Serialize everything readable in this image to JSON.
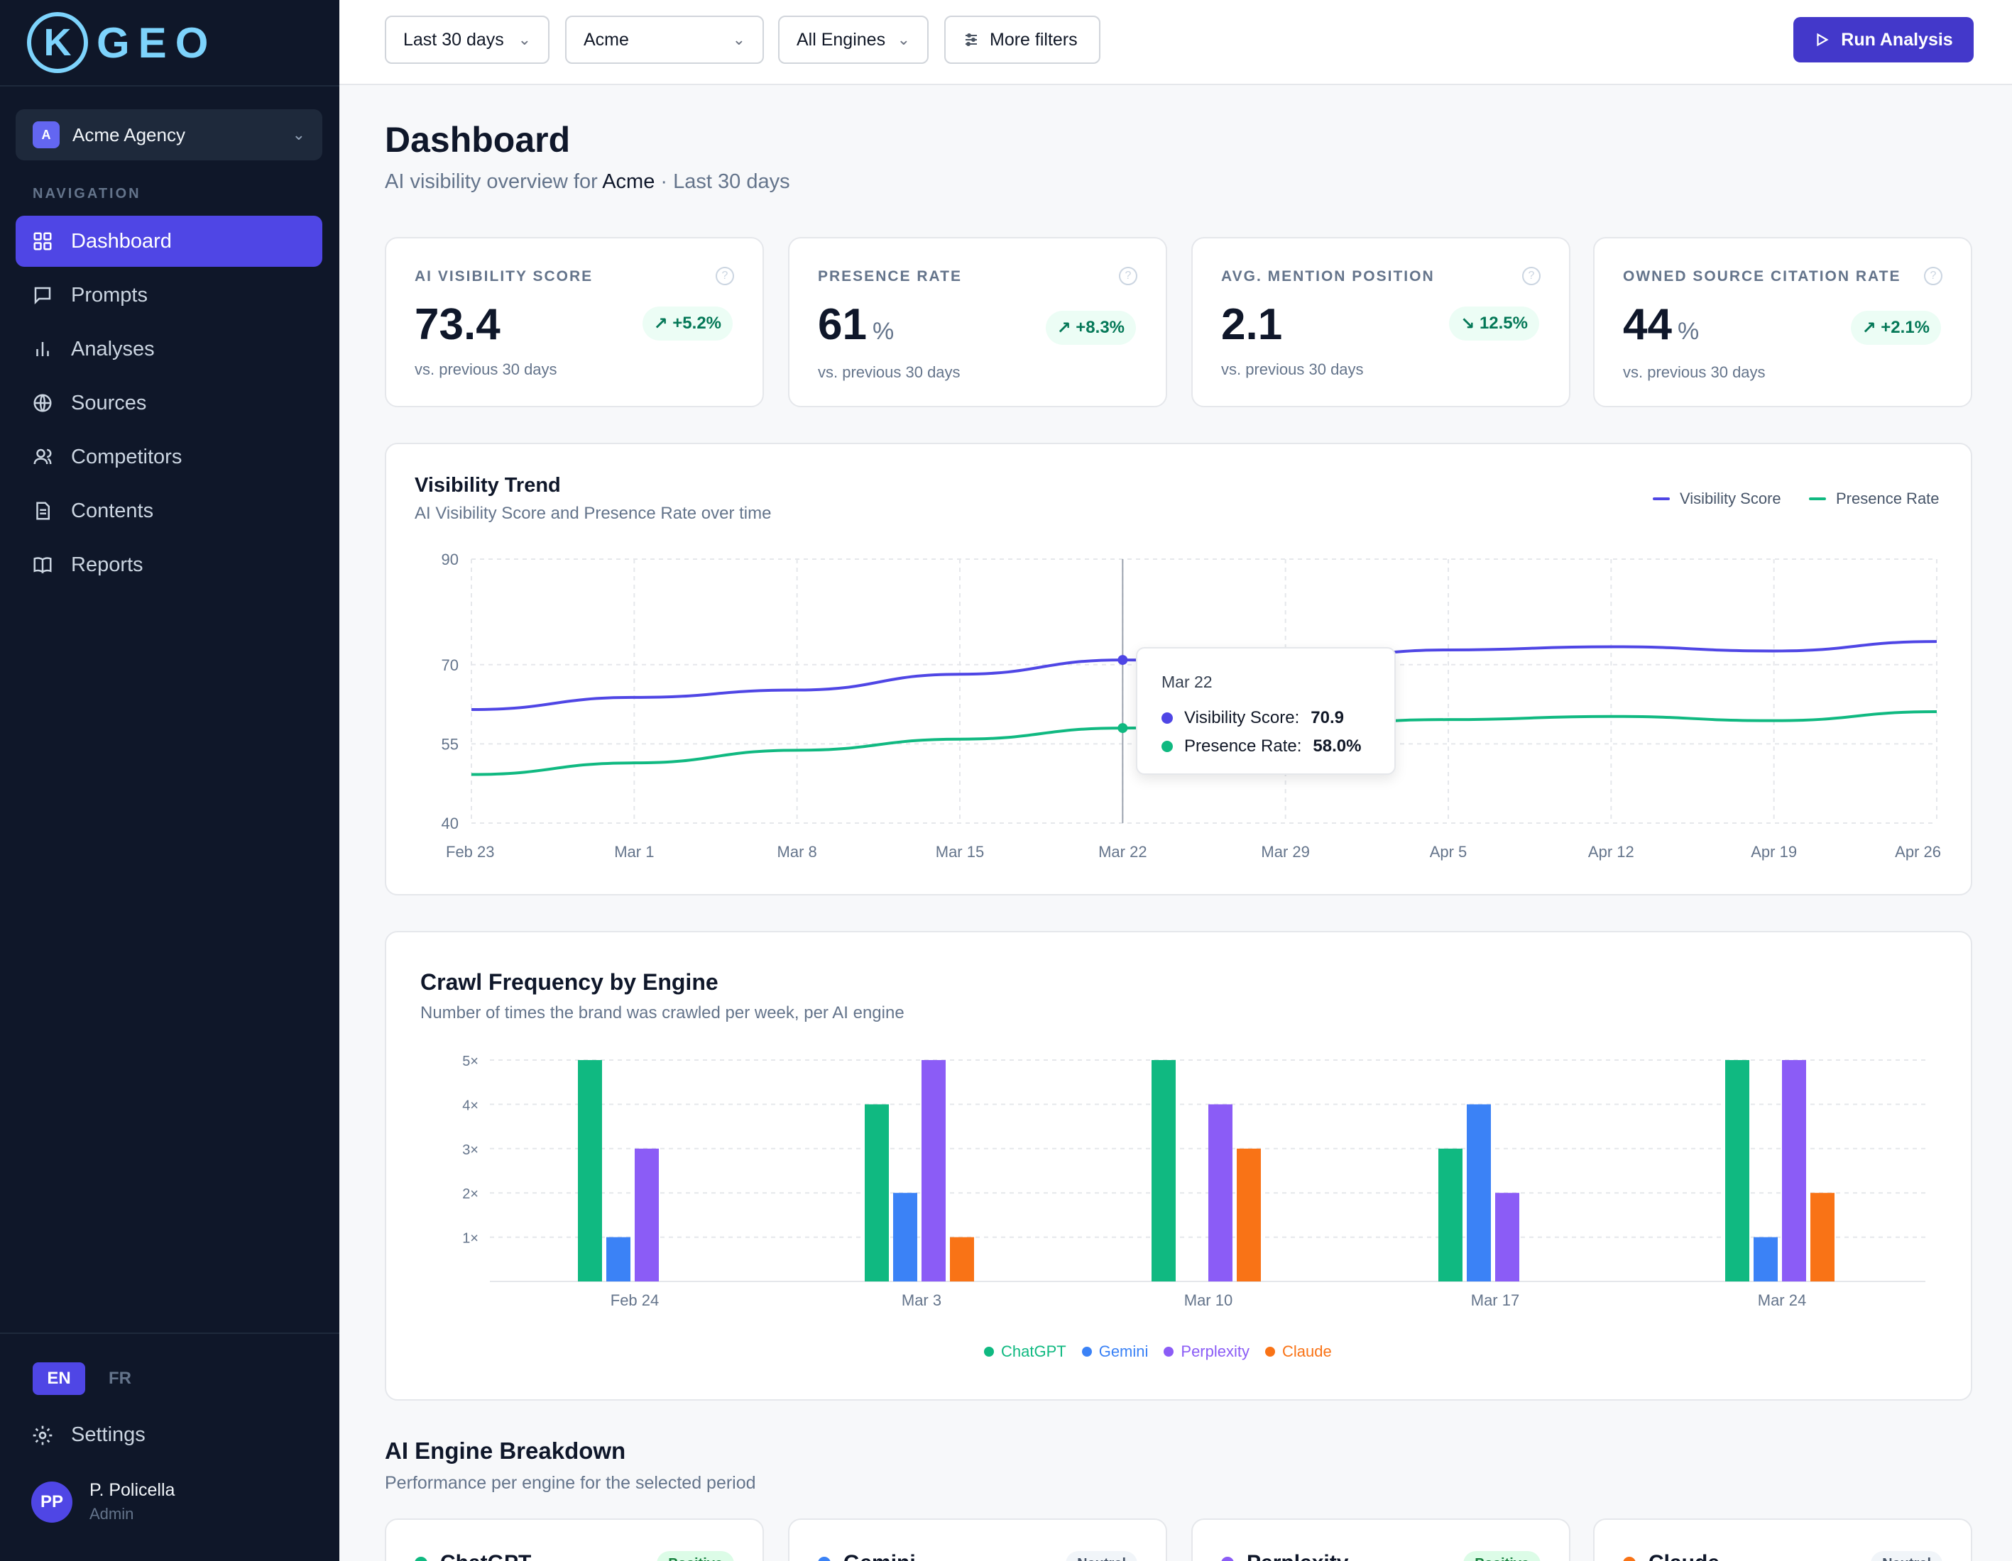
{
  "sidebar": {
    "logo_letter": "K",
    "logo_text": "GEO",
    "org": {
      "badge": "A",
      "name": "Acme Agency"
    },
    "nav_label": "NAVIGATION",
    "items": [
      {
        "label": "Dashboard",
        "icon": "grid-icon",
        "active": true
      },
      {
        "label": "Prompts",
        "icon": "message-icon"
      },
      {
        "label": "Analyses",
        "icon": "bar-chart-icon"
      },
      {
        "label": "Sources",
        "icon": "globe-icon"
      },
      {
        "label": "Competitors",
        "icon": "users-icon"
      },
      {
        "label": "Contents",
        "icon": "document-icon"
      },
      {
        "label": "Reports",
        "icon": "book-icon"
      }
    ],
    "lang_active": "EN",
    "lang_other": "FR",
    "settings_label": "Settings",
    "user": {
      "initials": "PP",
      "name": "P. Policella",
      "role": "Admin"
    }
  },
  "topbar": {
    "filters": {
      "period": "Last 30 days",
      "brand": "Acme",
      "engines": "All Engines",
      "more": "More filters"
    },
    "run_label": "Run Analysis",
    "accent": "#4338ca"
  },
  "header": {
    "title": "Dashboard",
    "subtitle_prefix": "AI visibility overview for",
    "subtitle_brand": "Acme",
    "subtitle_suffix": "· Last 30 days"
  },
  "kpis": [
    {
      "label": "AI VISIBILITY SCORE",
      "value": "73.4",
      "unit": "",
      "delta": "+5.2%",
      "direction": "up",
      "sub": "vs. previous 30 days"
    },
    {
      "label": "PRESENCE RATE",
      "value": "61",
      "unit": "%",
      "delta": "+8.3%",
      "direction": "up",
      "sub": "vs. previous 30 days"
    },
    {
      "label": "AVG. MENTION POSITION",
      "value": "2.1",
      "unit": "",
      "delta": "12.5%",
      "direction": "down",
      "sub": "vs. previous 30 days"
    },
    {
      "label": "OWNED SOURCE CITATION RATE",
      "value": "44",
      "unit": "%",
      "delta": "+2.1%",
      "direction": "up",
      "sub": "vs. previous 30 days"
    }
  ],
  "trend": {
    "title": "Visibility Trend",
    "subtitle": "AI Visibility Score and Presence Rate over time",
    "tooltip": {
      "date": "Mar 22",
      "vis_label": "Visibility Score:",
      "vis_value": "70.9",
      "pres_label": "Presence Rate:",
      "pres_value": "58.0%"
    }
  },
  "crawl": {
    "title": "Crawl Frequency by Engine",
    "subtitle": "Number of times the brand was crawled per week, per AI engine"
  },
  "breakdown": {
    "title": "AI Engine Breakdown",
    "subtitle": "Performance per engine for the selected period",
    "engines": [
      {
        "name": "ChatGPT",
        "badge": "Positive",
        "tone": "pos",
        "color": "#10b981"
      },
      {
        "name": "Gemini",
        "badge": "Neutral",
        "tone": "neu",
        "color": "#3b82f6"
      },
      {
        "name": "Perplexity",
        "badge": "Positive",
        "tone": "pos",
        "color": "#8b5cf6"
      },
      {
        "name": "Claude",
        "badge": "Neutral",
        "tone": "neu",
        "color": "#f97316"
      }
    ]
  },
  "chart_data": [
    {
      "type": "line",
      "title": "Visibility Trend",
      "x_ticks": [
        "Feb 23",
        "Mar 1",
        "Mar 8",
        "Mar 15",
        "Mar 22",
        "Mar 29",
        "Apr 5",
        "Apr 12",
        "Apr 19",
        "Apr 26"
      ],
      "y_ticks": [
        40,
        55,
        70,
        90
      ],
      "ylim": [
        40,
        90
      ],
      "grid": true,
      "legend": "top-right",
      "series": [
        {
          "name": "Visibility Score",
          "color": "#4f46e5",
          "values": [
            61.5,
            63.8,
            65.2,
            68.2,
            70.9,
            70.7,
            72.8,
            73.4,
            72.6,
            74.4
          ]
        },
        {
          "name": "Presence Rate",
          "color": "#10b981",
          "values": [
            49.2,
            51.4,
            53.8,
            55.9,
            58.0,
            58.6,
            59.6,
            60.2,
            59.4,
            61.1
          ]
        }
      ]
    },
    {
      "type": "bar",
      "title": "Crawl Frequency by Engine",
      "categories": [
        "Feb 24",
        "Mar 3",
        "Mar 10",
        "Mar 17",
        "Mar 24"
      ],
      "y_ticks": [
        "1×",
        "2×",
        "3×",
        "4×",
        "5×"
      ],
      "ylim": [
        0,
        5
      ],
      "grid": true,
      "legend": "bottom",
      "series": [
        {
          "name": "ChatGPT",
          "color": "#10b981",
          "values": [
            5,
            4,
            5,
            3,
            5
          ]
        },
        {
          "name": "Gemini",
          "color": "#3b82f6",
          "values": [
            1,
            2,
            0,
            4,
            1
          ]
        },
        {
          "name": "Perplexity",
          "color": "#8b5cf6",
          "values": [
            3,
            5,
            4,
            2,
            5
          ]
        },
        {
          "name": "Claude",
          "color": "#f97316",
          "values": [
            0,
            1,
            3,
            0,
            2
          ]
        }
      ]
    }
  ]
}
